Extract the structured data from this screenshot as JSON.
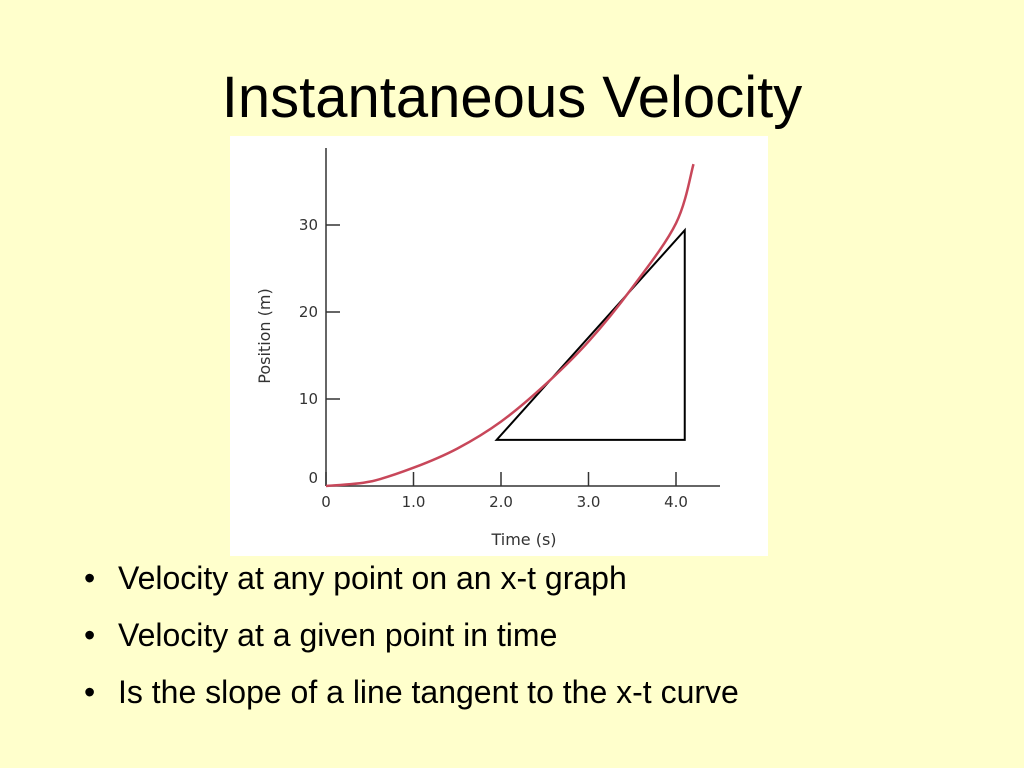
{
  "slide": {
    "title": "Instantaneous Velocity",
    "bullets": [
      "Velocity at any point on an x-t graph",
      "Velocity at a given point in time",
      "Is the slope of a line tangent to the x-t curve"
    ]
  },
  "chart_data": {
    "type": "line",
    "title": "",
    "xlabel": "Time (s)",
    "ylabel": "Position (m)",
    "xlim": [
      0,
      4.4
    ],
    "ylim": [
      0,
      38
    ],
    "x_ticks": [
      0,
      1.0,
      2.0,
      3.0,
      4.0
    ],
    "x_tick_labels": [
      "0",
      "1.0",
      "2.0",
      "3.0",
      "4.0"
    ],
    "y_ticks": [
      0,
      10,
      20,
      30
    ],
    "y_tick_labels": [
      "0",
      "10",
      "20",
      "30"
    ],
    "grid": false,
    "series": [
      {
        "color": "#c8475a",
        "x": [
          0,
          0.5,
          1.0,
          1.5,
          2.0,
          2.5,
          3.0,
          3.5,
          4.0,
          4.2
        ],
        "y": [
          0,
          0.5,
          2.1,
          4.3,
          7.4,
          11.6,
          16.6,
          22.8,
          30.2,
          37
        ]
      }
    ],
    "tangent_triangle": {
      "color": "#000000",
      "vertices": [
        [
          1.95,
          5.3
        ],
        [
          4.1,
          29.4
        ],
        [
          4.1,
          5.3
        ]
      ]
    }
  }
}
